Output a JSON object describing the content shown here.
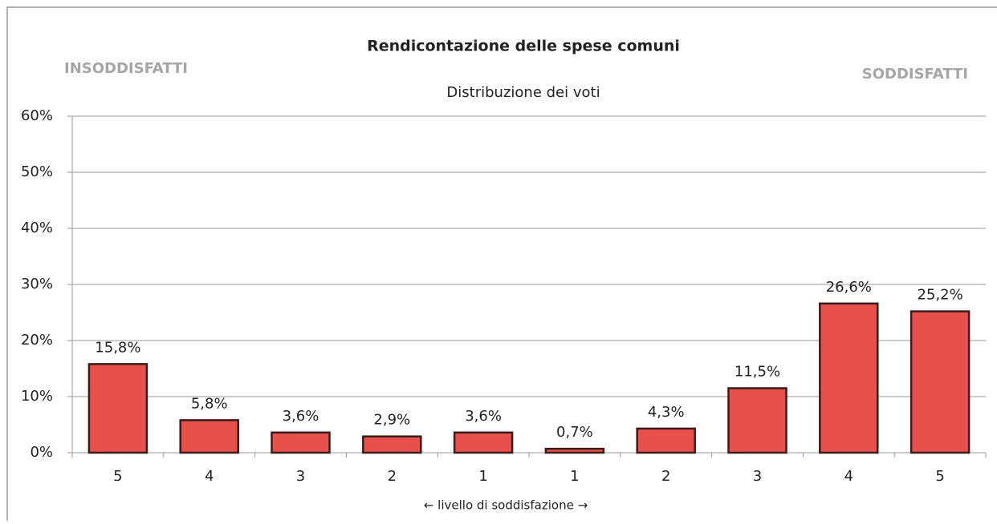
{
  "chart_data": {
    "type": "bar",
    "title": "Rendicontazione delle spese comuni",
    "subtitle": "Distribuzione dei voti",
    "annotations": {
      "left": "INSODDISFATTI",
      "right": "SODDISFATTI"
    },
    "x_label": "← livello di soddisfazione →",
    "categories": [
      "5",
      "4",
      "3",
      "2",
      "1",
      "1",
      "2",
      "3",
      "4",
      "5"
    ],
    "values": [
      15.8,
      5.8,
      3.6,
      2.9,
      3.6,
      0.7,
      4.3,
      11.5,
      26.6,
      25.2
    ],
    "value_labels": [
      "15,8%",
      "5,8%",
      "3,6%",
      "2,9%",
      "3,6%",
      "0,7%",
      "4,3%",
      "11,5%",
      "26,6%",
      "25,2%"
    ],
    "color": "#e8504c",
    "ylim": [
      0,
      60
    ],
    "yticks": [
      {
        "value": 0,
        "label": "0%"
      },
      {
        "value": 10,
        "label": "10%"
      },
      {
        "value": 20,
        "label": "20%"
      },
      {
        "value": 30,
        "label": "30%"
      },
      {
        "value": 40,
        "label": "40%"
      },
      {
        "value": 50,
        "label": "50%"
      },
      {
        "value": 60,
        "label": "60%"
      }
    ],
    "grid": true
  }
}
